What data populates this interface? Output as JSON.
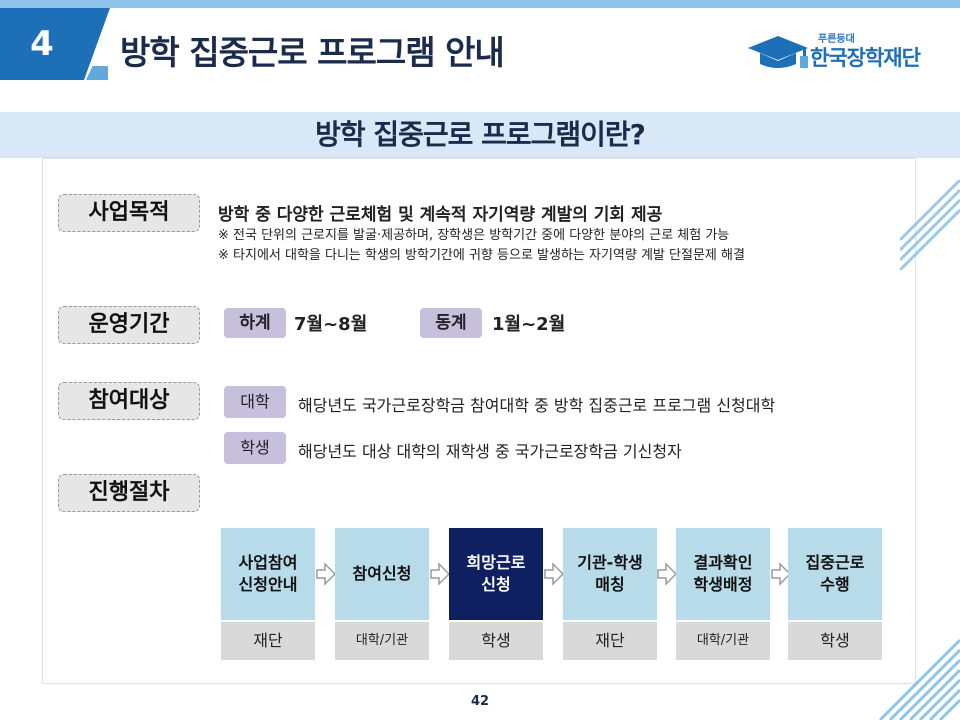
{
  "header": {
    "section_number": "4",
    "title": "방학 집중근로 프로그램 안내",
    "logo_small": "푸른등대",
    "logo_name": "한국장학재단"
  },
  "subtitle": "방학 집중근로 프로그램이란?",
  "purpose": {
    "label": "사업목적",
    "main": "방학 중 다양한 근로체험 및 계속적 자기역량 계발의 기회 제공",
    "notes": [
      "※ 전국 단위의 근로지를 발굴·제공하며, 장학생은 방학기간 중에 다양한 분야의 근로 체험 가능",
      "※ 타지에서 대학을 다니는 학생의 방학기간에 귀향 등으로 발생하는 자기역량 계발 단절문제 해결"
    ]
  },
  "period": {
    "label": "운영기간",
    "summer_label": "하계",
    "summer_value": "7월~8월",
    "winter_label": "동계",
    "winter_value": "1월~2월"
  },
  "participants": {
    "label": "참여대상",
    "rows": [
      {
        "tag": "대학",
        "text": "해당년도 국가근로장학금 참여대학 중 방학 집중근로 프로그램 신청대학"
      },
      {
        "tag": "학생",
        "text": "해당년도 대상 대학의 재학생 중 국가근로장학금 기신청자"
      }
    ]
  },
  "procedure": {
    "label": "진행절차",
    "steps": [
      {
        "title": "사업참여\n신청안내",
        "actor": "재단"
      },
      {
        "title": "참여신청",
        "actor": "대학/기관"
      },
      {
        "title": "희망근로\n신청",
        "actor": "학생"
      },
      {
        "title": "기관-학생\n매칭",
        "actor": "재단"
      },
      {
        "title": "결과확인\n학생배정",
        "actor": "대학/기관"
      },
      {
        "title": "집중근로\n수행",
        "actor": "학생"
      }
    ]
  },
  "page_number": "42",
  "colors": {
    "brand_blue": "#1d6fb8",
    "light_blue": "#b7dbe8",
    "highlight_navy": "#0f2060",
    "pill_purple": "#c6c0dc",
    "band": "#d8e8f6"
  }
}
